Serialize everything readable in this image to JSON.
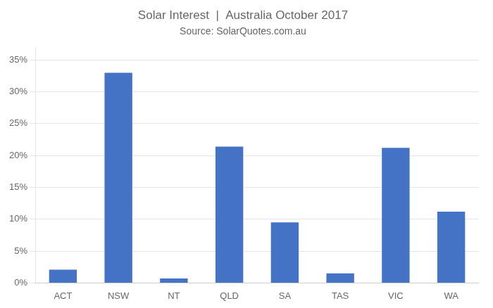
{
  "chart_data": {
    "type": "bar",
    "title": "Solar Interest  |  Australia October 2017",
    "subtitle": "Source: SolarQuotes.com.au",
    "categories": [
      "ACT",
      "NSW",
      "NT",
      "QLD",
      "SA",
      "TAS",
      "VIC",
      "WA"
    ],
    "values": [
      0.021,
      0.33,
      0.007,
      0.214,
      0.095,
      0.015,
      0.212,
      0.112
    ],
    "color": "#4472C4",
    "ylim": [
      0,
      0.37
    ],
    "yticks": [
      {
        "value": 0.0,
        "label": "0%"
      },
      {
        "value": 0.05,
        "label": "5%"
      },
      {
        "value": 0.1,
        "label": "10%"
      },
      {
        "value": 0.15,
        "label": "15%"
      },
      {
        "value": 0.2,
        "label": "20%"
      },
      {
        "value": 0.25,
        "label": "25%"
      },
      {
        "value": 0.3,
        "label": "30%"
      },
      {
        "value": 0.35,
        "label": "35%"
      }
    ],
    "grid": true
  }
}
